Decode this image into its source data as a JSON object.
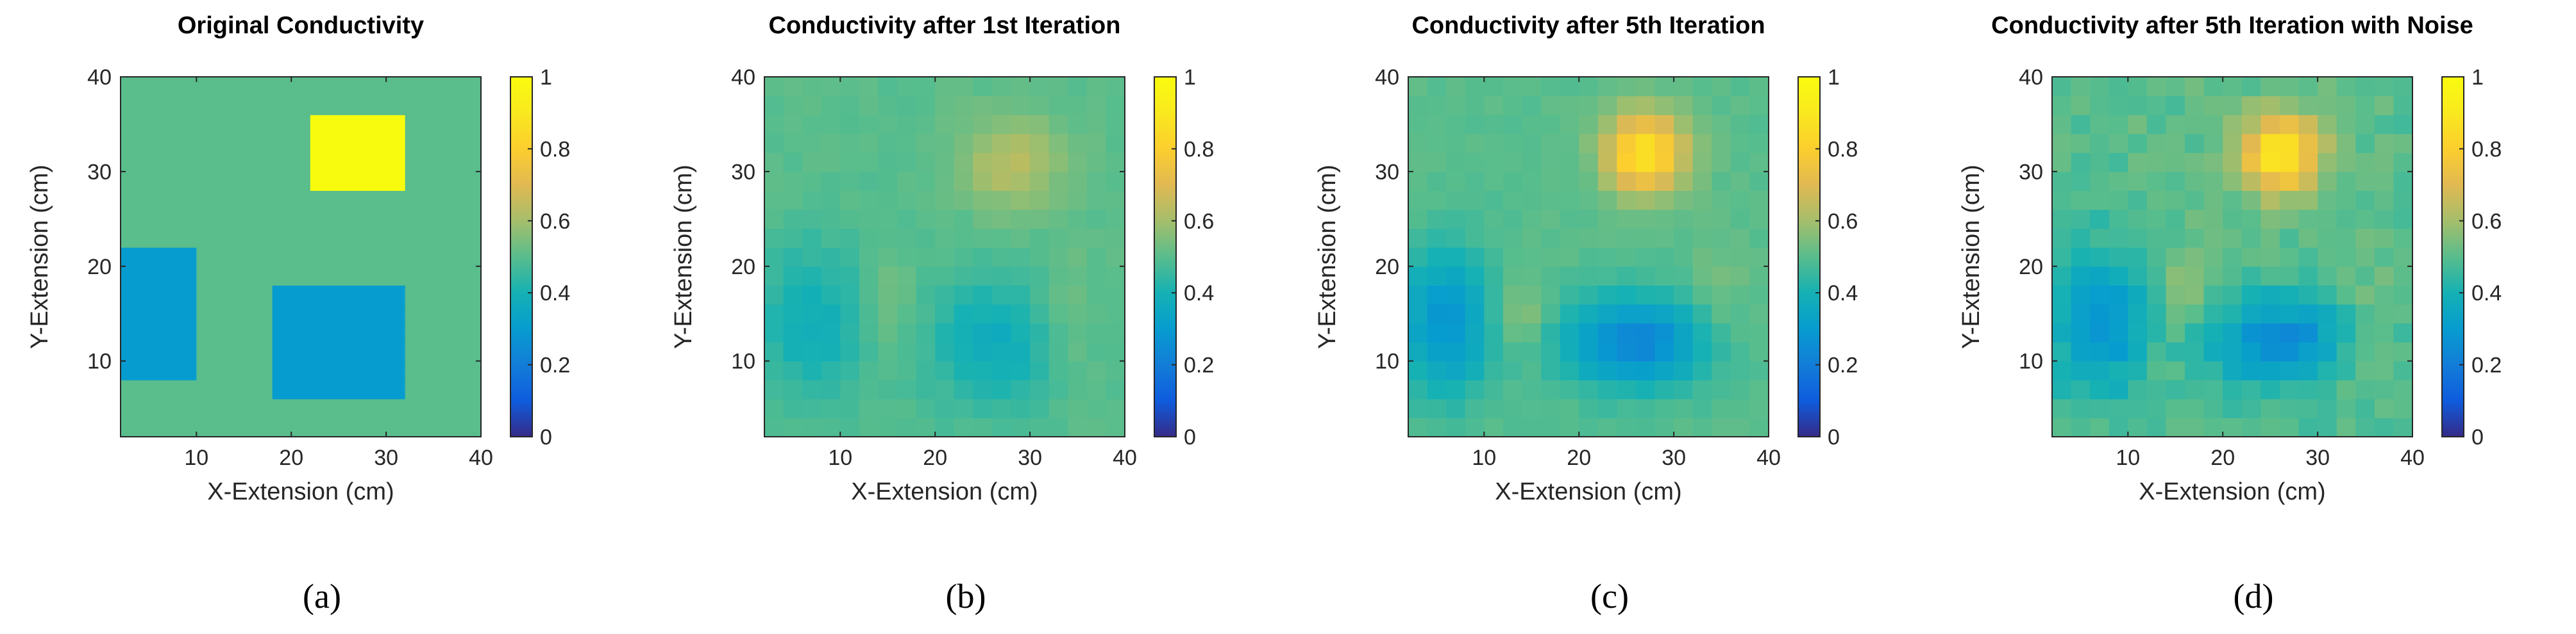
{
  "chart_data": [
    {
      "type": "heatmap",
      "panel_label": "(a)",
      "title": "Original Conductivity",
      "xlabel": "X-Extension (cm)",
      "ylabel": "Y-Extension (cm)",
      "xlim": [
        2,
        40
      ],
      "ylim": [
        2,
        40
      ],
      "xticks": [
        "10",
        "20",
        "30",
        "40"
      ],
      "yticks": [
        "10",
        "20",
        "30",
        "40"
      ],
      "colorbar": {
        "ticks": [
          "0",
          "0.2",
          "0.4",
          "0.6",
          "0.8",
          "1"
        ],
        "range": [
          0,
          1
        ],
        "colormap": "parula"
      },
      "background_value": 0.5,
      "regions": [
        {
          "x": [
            2,
            10
          ],
          "y": [
            9,
            21
          ],
          "value": 0.3
        },
        {
          "x": [
            19,
            31
          ],
          "y": [
            7,
            17
          ],
          "value": 0.3
        },
        {
          "x": [
            23,
            31
          ],
          "y": [
            29,
            35
          ],
          "value": 1.0
        }
      ]
    },
    {
      "type": "heatmap",
      "panel_label": "(b)",
      "title": "Conductivity after 1st Iteration",
      "xlabel": "X-Extension (cm)",
      "ylabel": "Y-Extension (cm)",
      "xlim": [
        2,
        40
      ],
      "ylim": [
        2,
        40
      ],
      "xticks": [
        "10",
        "20",
        "30",
        "40"
      ],
      "yticks": [
        "10",
        "20",
        "30",
        "40"
      ],
      "colorbar": {
        "ticks": [
          "0",
          "0.2",
          "0.4",
          "0.6",
          "0.8",
          "1"
        ],
        "range": [
          0,
          1
        ],
        "colormap": "parula"
      },
      "background_value": 0.5,
      "blobs": [
        {
          "x": 7,
          "y": 14,
          "sx": 4,
          "sy": 6,
          "amp": -0.12
        },
        {
          "x": 26,
          "y": 12,
          "sx": 5,
          "sy": 5,
          "amp": -0.13
        },
        {
          "x": 28,
          "y": 31,
          "sx": 4,
          "sy": 3.5,
          "amp": 0.13
        },
        {
          "x": 15,
          "y": 16,
          "sx": 2,
          "sy": 3,
          "amp": 0.06
        },
        {
          "x": 34,
          "y": 15,
          "sx": 2,
          "sy": 5,
          "amp": 0.05
        }
      ]
    },
    {
      "type": "heatmap",
      "panel_label": "(c)",
      "title": "Conductivity after 5th Iteration",
      "xlabel": "X-Extension (cm)",
      "ylabel": "Y-Extension (cm)",
      "xlim": [
        2,
        40
      ],
      "ylim": [
        2,
        40
      ],
      "xticks": [
        "10",
        "20",
        "30",
        "40"
      ],
      "yticks": [
        "10",
        "20",
        "30",
        "40"
      ],
      "colorbar": {
        "ticks": [
          "0",
          "0.2",
          "0.4",
          "0.6",
          "0.8",
          "1"
        ],
        "range": [
          0,
          1
        ],
        "colormap": "parula"
      },
      "background_value": 0.5,
      "blobs": [
        {
          "x": 6,
          "y": 14,
          "sx": 3.5,
          "sy": 5.5,
          "amp": -0.22
        },
        {
          "x": 26,
          "y": 12,
          "sx": 5.5,
          "sy": 3.5,
          "amp": -0.27
        },
        {
          "x": 27,
          "y": 32,
          "sx": 3,
          "sy": 3,
          "amp": 0.38
        },
        {
          "x": 14,
          "y": 15,
          "sx": 1.8,
          "sy": 3,
          "amp": 0.08
        },
        {
          "x": 35,
          "y": 17,
          "sx": 2,
          "sy": 4,
          "amp": 0.05
        }
      ]
    },
    {
      "type": "heatmap",
      "panel_label": "(d)",
      "title": "Conductivity after 5th Iteration with Noise",
      "xlabel": "X-Extension (cm)",
      "ylabel": "Y-Extension (cm)",
      "xlim": [
        2,
        40
      ],
      "ylim": [
        2,
        40
      ],
      "xticks": [
        "10",
        "20",
        "30",
        "40"
      ],
      "yticks": [
        "10",
        "20",
        "30",
        "40"
      ],
      "colorbar": {
        "ticks": [
          "0",
          "0.2",
          "0.4",
          "0.6",
          "0.8",
          "1"
        ],
        "range": [
          0,
          1
        ],
        "colormap": "parula"
      },
      "background_value": 0.5,
      "noise": 0.03,
      "blobs": [
        {
          "x": 7,
          "y": 14,
          "sx": 3.5,
          "sy": 5.5,
          "amp": -0.23
        },
        {
          "x": 26,
          "y": 12,
          "sx": 5.5,
          "sy": 3.5,
          "amp": -0.26
        },
        {
          "x": 26,
          "y": 32,
          "sx": 3,
          "sy": 3,
          "amp": 0.4
        },
        {
          "x": 16,
          "y": 17,
          "sx": 1.8,
          "sy": 3,
          "amp": 0.08
        },
        {
          "x": 34,
          "y": 12,
          "sx": 2,
          "sy": 5,
          "amp": 0.05
        }
      ]
    }
  ]
}
